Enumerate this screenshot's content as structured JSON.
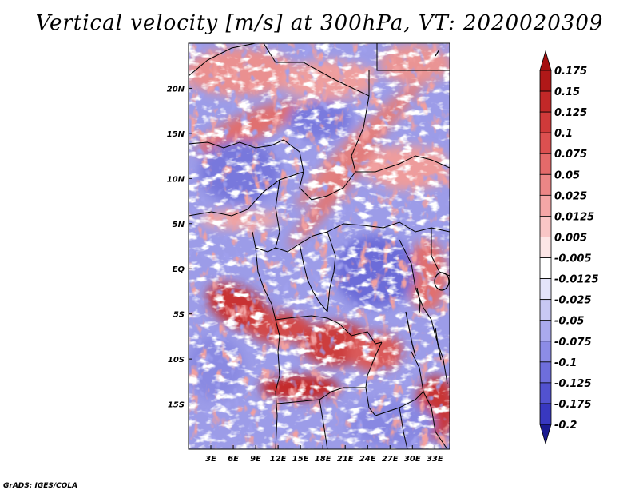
{
  "title": "Vertical velocity [m/s] at 300hPa, VT: 2020020309",
  "credit": "GrADS: IGES/COLA",
  "map": {
    "lon_range": [
      0,
      35
    ],
    "lat_range": [
      -20,
      25
    ],
    "lon_ticks": [
      {
        "value": 3,
        "label": "3E"
      },
      {
        "value": 6,
        "label": "6E"
      },
      {
        "value": 9,
        "label": "9E"
      },
      {
        "value": 12,
        "label": "12E"
      },
      {
        "value": 15,
        "label": "15E"
      },
      {
        "value": 18,
        "label": "18E"
      },
      {
        "value": 21,
        "label": "21E"
      },
      {
        "value": 24,
        "label": "24E"
      },
      {
        "value": 27,
        "label": "27E"
      },
      {
        "value": 30,
        "label": "30E"
      },
      {
        "value": 33,
        "label": "33E"
      }
    ],
    "lat_ticks": [
      {
        "value": 20,
        "label": "20N"
      },
      {
        "value": 15,
        "label": "15N"
      },
      {
        "value": 10,
        "label": "10N"
      },
      {
        "value": 5,
        "label": "5N"
      },
      {
        "value": 0,
        "label": "EQ"
      },
      {
        "value": -5,
        "label": "5S"
      },
      {
        "value": -10,
        "label": "10S"
      },
      {
        "value": -15,
        "label": "15S"
      }
    ]
  },
  "colorbar": {
    "levels": [
      {
        "label": "0.175",
        "color": "#b01818"
      },
      {
        "label": "0.15",
        "color": "#c22828"
      },
      {
        "label": "0.125",
        "color": "#d03a3a"
      },
      {
        "label": "0.1",
        "color": "#dc5050"
      },
      {
        "label": "0.075",
        "color": "#e46a6a"
      },
      {
        "label": "0.05",
        "color": "#ec8686"
      },
      {
        "label": "0.025",
        "color": "#f4a6a6"
      },
      {
        "label": "0.0125",
        "color": "#f9c6c6"
      },
      {
        "label": "0.005",
        "color": "#fde6e6"
      },
      {
        "label": "-0.005",
        "color": "#ffffff"
      },
      {
        "label": "-0.0125",
        "color": "#e4e4fa"
      },
      {
        "label": "-0.025",
        "color": "#c8c8f4"
      },
      {
        "label": "-0.05",
        "color": "#aaaaee"
      },
      {
        "label": "-0.075",
        "color": "#8c8ce6"
      },
      {
        "label": "-0.1",
        "color": "#6e6edc"
      },
      {
        "label": "-0.125",
        "color": "#5252d0"
      },
      {
        "label": "-0.175",
        "color": "#3838c0"
      },
      {
        "label": "-0.2",
        "color": "#2424a8"
      }
    ],
    "top_color": "#a51010",
    "bottom_color": "#1a1a90"
  }
}
